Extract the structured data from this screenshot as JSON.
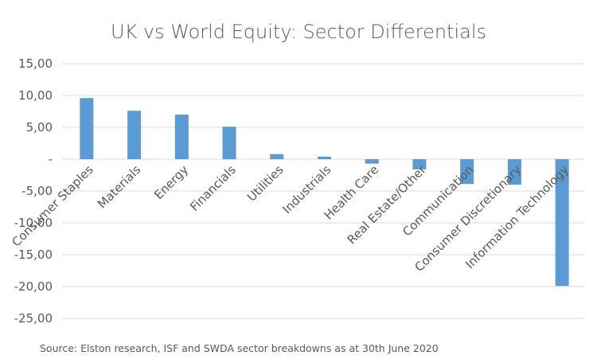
{
  "chart_data": {
    "type": "bar",
    "title": "UK vs World Equity: Sector Differentials",
    "categories": [
      "Consumer Staples",
      "Materials",
      "Energy",
      "Financials",
      "Utilities",
      "Industrials",
      "Health Care",
      "Real Estate/Other",
      "Communication",
      "Consumer Discretionary",
      "Information Technology"
    ],
    "values": [
      9.6,
      7.6,
      7.0,
      5.1,
      0.8,
      0.4,
      -0.7,
      -1.6,
      -3.9,
      -4.0,
      -19.9
    ],
    "ylim": [
      -25,
      15
    ],
    "yticks": [
      15,
      10,
      5,
      0,
      -5,
      -10,
      -15,
      -20,
      -25
    ],
    "ytick_labels": [
      "15,00",
      "10,00",
      "5,00",
      "-",
      "-5,00",
      "-10,00",
      "-15,00",
      "-20,00",
      "-25,00"
    ],
    "grid": true,
    "bar_color": "#5b9bd5",
    "source": "Source:  Elston research, ISF and SWDA sector breakdowns as at 30th June 2020"
  }
}
